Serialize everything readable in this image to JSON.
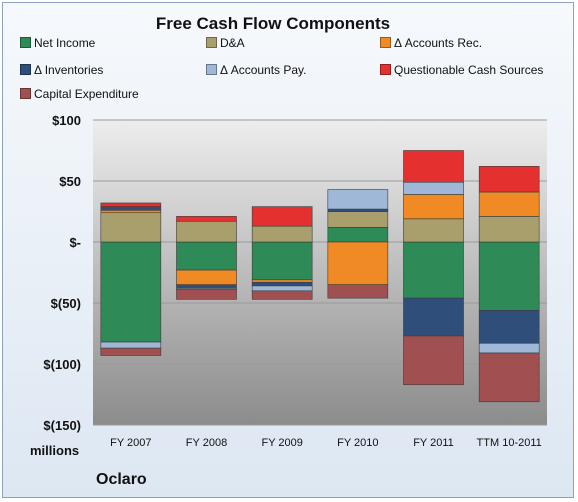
{
  "chart_data": {
    "type": "bar",
    "stacked": true,
    "title": "Free Cash Flow Components",
    "units_label": "millions",
    "company_label": "Oclaro",
    "categories": [
      "FY 2007",
      "FY 2008",
      "FY 2009",
      "FY 2010",
      "FY 2011",
      "TTM 10-2011"
    ],
    "ylim": [
      -150,
      100
    ],
    "yticks": [
      100,
      50,
      0,
      -50,
      -100,
      -150
    ],
    "ytick_labels": [
      "$100",
      "$50",
      "$-",
      "$(50)",
      "$(100)",
      "$(150)"
    ],
    "grid": true,
    "legend_position": "top",
    "series": [
      {
        "name": "Net Income",
        "color": "#2e8b57",
        "values": [
          -82,
          -23,
          -31,
          12,
          -46,
          -56
        ]
      },
      {
        "name": "D&A",
        "color": "#a89f6c",
        "values": [
          24,
          17,
          13,
          13,
          19,
          21
        ]
      },
      {
        "name": "Δ Accounts Rec.",
        "color": "#ef8a24",
        "values": [
          2,
          -12,
          -2,
          -35,
          20,
          20
        ]
      },
      {
        "name": "Δ Inventories",
        "color": "#2f4f7a",
        "values": [
          3,
          -3,
          -3,
          2,
          -31,
          -27
        ]
      },
      {
        "name": "Δ Accounts Pay.",
        "color": "#9fb8d8",
        "values": [
          -5,
          -1,
          -4,
          16,
          10,
          -8
        ]
      },
      {
        "name": "Questionable Cash Sources",
        "color": "#e53030",
        "values": [
          3,
          4,
          16,
          0,
          26,
          21
        ]
      },
      {
        "name": "Capital Expenditure",
        "color": "#a05050",
        "values": [
          -6,
          -8,
          -7,
          -11,
          -40,
          -40
        ]
      }
    ]
  }
}
